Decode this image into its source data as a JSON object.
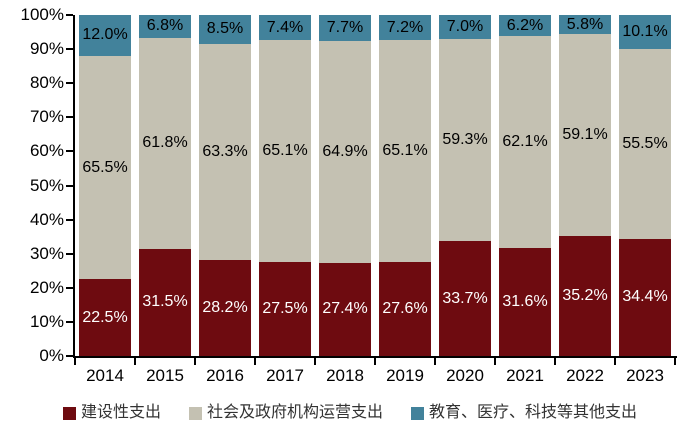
{
  "chart_data": {
    "type": "bar",
    "variant": "stacked-percentage-column",
    "title": "",
    "xlabel": "",
    "ylabel": "",
    "categories": [
      "2014",
      "2015",
      "2016",
      "2017",
      "2018",
      "2019",
      "2020",
      "2021",
      "2022",
      "2023"
    ],
    "series": [
      {
        "name": "建设性支出",
        "color": "#6E0B10",
        "label_color": "#FFFFFF",
        "values": [
          22.5,
          31.5,
          28.2,
          27.5,
          27.4,
          27.6,
          33.7,
          31.6,
          35.2,
          34.4
        ]
      },
      {
        "name": "社会及政府机构运营支出",
        "color": "#C4C1B2",
        "label_color": "#000000",
        "values": [
          65.5,
          61.8,
          63.3,
          65.1,
          64.9,
          65.1,
          59.3,
          62.1,
          59.1,
          55.5
        ]
      },
      {
        "name": "教育、医疗、科技等其他支出",
        "color": "#42829B",
        "label_color": "#000000",
        "values": [
          12.0,
          6.8,
          8.5,
          7.4,
          7.7,
          7.2,
          7.0,
          6.2,
          5.8,
          10.1
        ]
      }
    ],
    "value_suffix": "%",
    "value_decimals": 1,
    "ylim": [
      0,
      100
    ],
    "y_tick_step": 10,
    "y_tick_labels": [
      "0%",
      "10%",
      "20%",
      "30%",
      "40%",
      "50%",
      "60%",
      "70%",
      "80%",
      "90%",
      "100%"
    ],
    "grid": false,
    "legend_position": "bottom",
    "axis_color": "#000000"
  }
}
